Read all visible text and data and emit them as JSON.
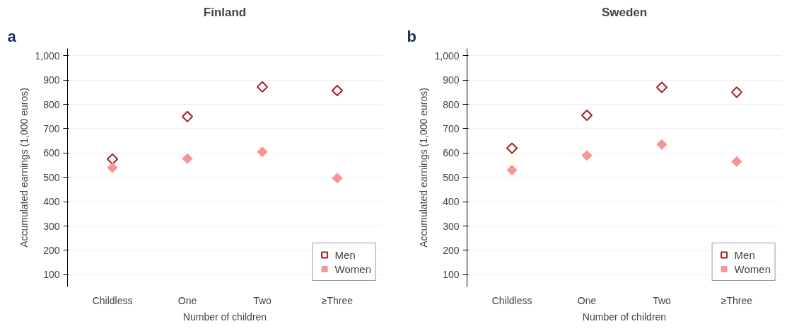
{
  "chart_data": [
    {
      "type": "scatter",
      "title": "Finland",
      "xlabel": "Number of children",
      "ylabel": "Accumulated earnings (1,000 euros)",
      "annotations": [
        "a"
      ],
      "categories": [
        "Childless",
        "One",
        "Two",
        "≥Three"
      ],
      "series": [
        {
          "name": "Men",
          "color": "#a51d23",
          "marker": "diamond",
          "values": [
            575,
            750,
            872,
            857
          ]
        },
        {
          "name": "Women",
          "color": "#f99494",
          "marker": "diamond_filled",
          "values": [
            540,
            577,
            605,
            497
          ]
        }
      ],
      "ylim": [
        50,
        1030
      ],
      "yticks": [
        100,
        200,
        300,
        400,
        500,
        600,
        700,
        800,
        900,
        {
          "value": 1000,
          "label": "1,000"
        }
      ],
      "grid": "y",
      "legend": "bottom right"
    },
    {
      "type": "scatter",
      "title": "Sweden",
      "xlabel": "Number of children",
      "ylabel": "Accumulated earnings (1,000 euros)",
      "annotations": [
        "b"
      ],
      "categories": [
        "Childless",
        "One",
        "Two",
        "≥Three"
      ],
      "series": [
        {
          "name": "Men",
          "color": "#a51d23",
          "marker": "diamond",
          "values": [
            620,
            755,
            870,
            850
          ]
        },
        {
          "name": "Women",
          "color": "#f99494",
          "marker": "diamond_filled",
          "values": [
            530,
            590,
            635,
            565
          ]
        }
      ],
      "ylim": [
        50,
        1030
      ],
      "yticks": [
        100,
        200,
        300,
        400,
        500,
        600,
        700,
        800,
        900,
        {
          "value": 1000,
          "label": "1,000"
        }
      ],
      "grid": "y",
      "legend": "bottom right"
    }
  ]
}
